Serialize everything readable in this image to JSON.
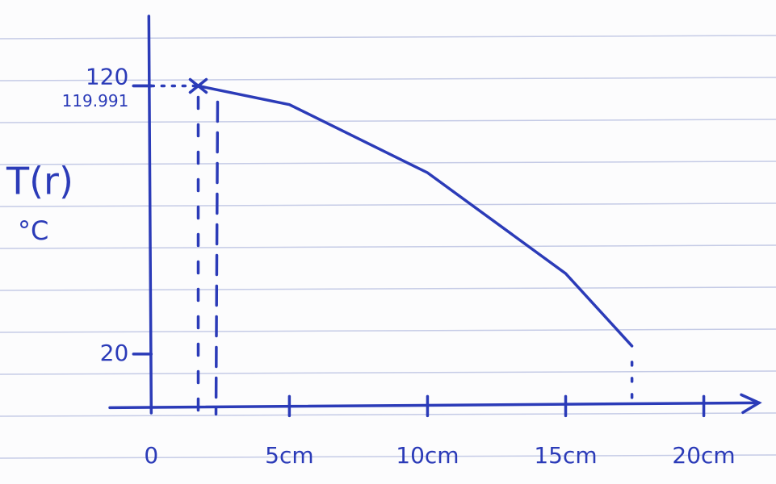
{
  "chart_data": {
    "type": "line",
    "y_label": "T(r)",
    "y_unit": "°C",
    "x": [
      1.7,
      5,
      10,
      15,
      17.4
    ],
    "series": [
      {
        "color": "#2b3bb8",
        "values": [
          119.991,
          113,
          87.6,
          50,
          23
        ]
      }
    ],
    "xlim": [
      -1.5,
      22
    ],
    "ylim": [
      -2,
      146
    ],
    "xticks": [
      0,
      {
        "value": 5,
        "label": "5cm"
      },
      {
        "value": 10,
        "label": "10cm"
      },
      {
        "value": 15,
        "label": "15cm"
      },
      {
        "value": 20,
        "label": "20cm"
      }
    ],
    "yticks": [
      20,
      119.991,
      120
    ]
  }
}
